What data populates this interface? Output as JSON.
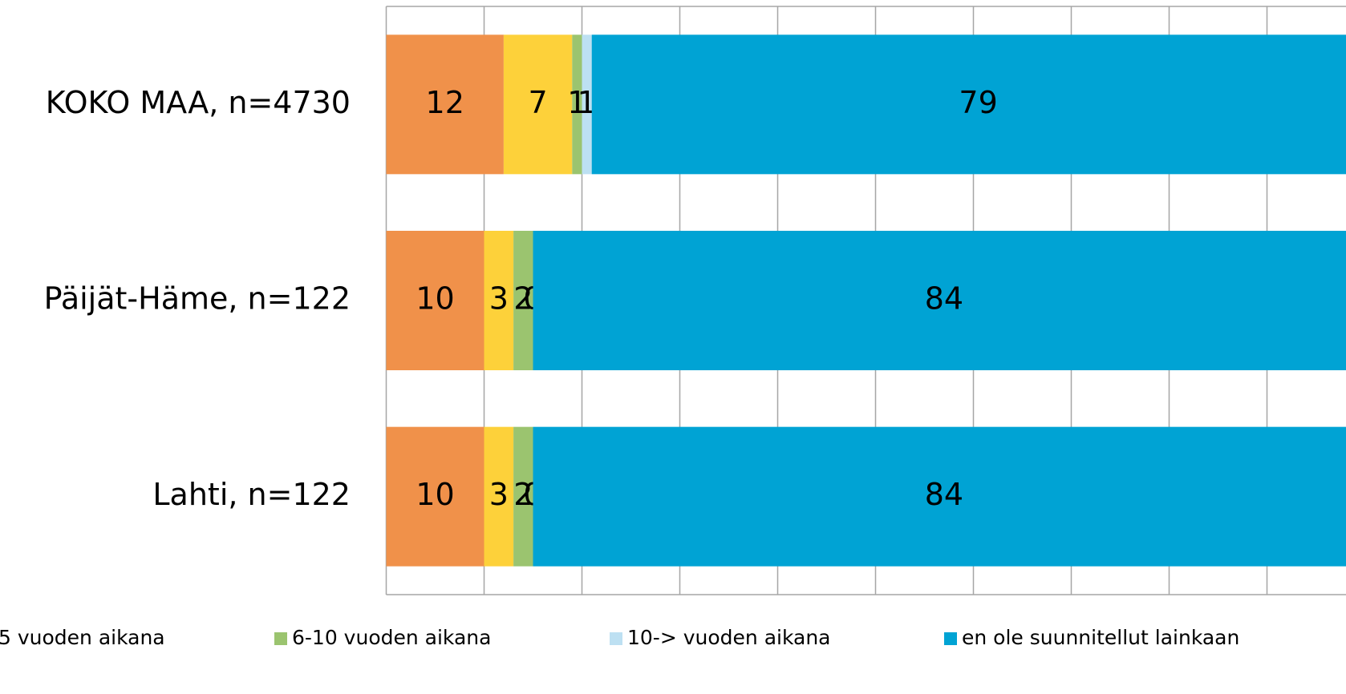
{
  "chart_data": {
    "type": "stacked-bar-horizontal",
    "categories": [
      "KOKO MAA, n=4730",
      "Päijät-Häme, n=122",
      "Lahti, n=122"
    ],
    "series": [
      {
        "color": "#f0914a",
        "values": [
          12,
          10,
          10
        ]
      },
      {
        "name": "5 vuoden aikana",
        "color": "#fdd13a",
        "values": [
          7,
          3,
          3
        ]
      },
      {
        "name": "6-10 vuoden aikana",
        "color": "#9bc46f",
        "values": [
          1,
          2,
          2
        ]
      },
      {
        "name": "10-> vuoden aikana",
        "color": "#bde0f2",
        "values": [
          1,
          0,
          0
        ]
      },
      {
        "name": "en ole suunnitellut lainkaan",
        "color": "#00a3d4",
        "values": [
          79,
          84,
          84
        ]
      }
    ],
    "xlim": [
      0,
      100
    ],
    "xticks": [
      0,
      10,
      20,
      30,
      40,
      50,
      60,
      70,
      80,
      90,
      100
    ],
    "grid": true,
    "legend": "bottom"
  }
}
